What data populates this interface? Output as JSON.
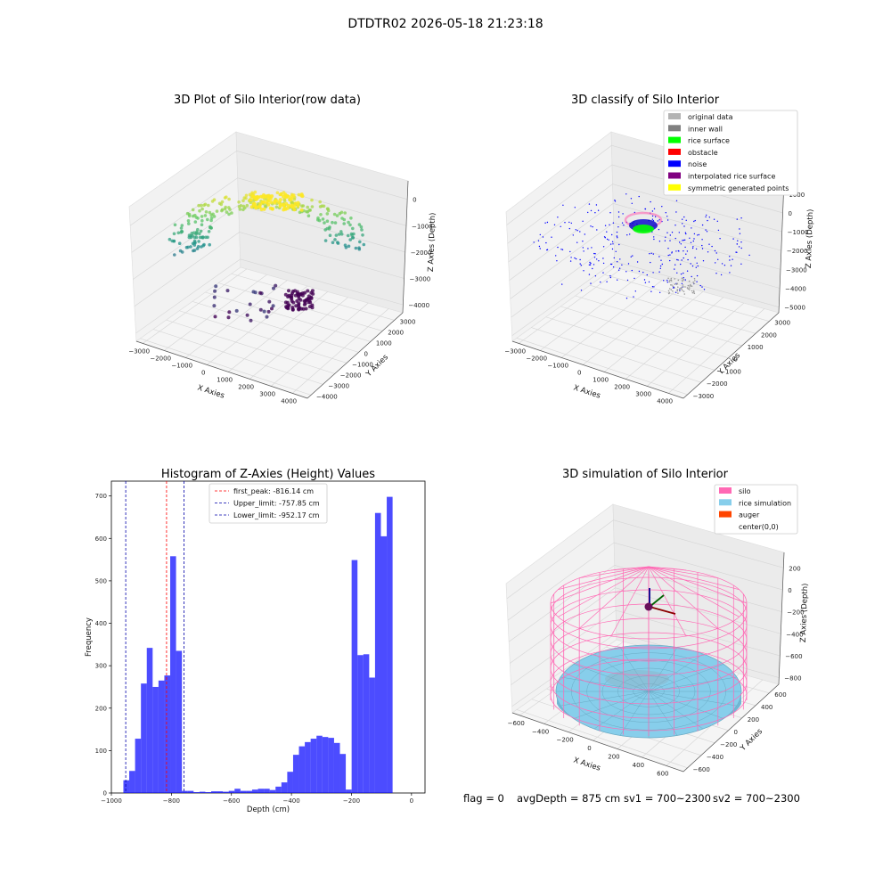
{
  "suptitle": "DTDTR02 2026-05-18 21:23:18",
  "panels": {
    "raw": {
      "title": "3D Plot of Silo Interior(row data)",
      "xlabel": "X Axies",
      "ylabel": "Y Axies",
      "zlabel": "Z Axies (Depth)",
      "xticks": [
        "−3000",
        "−2000",
        "−1000",
        "0",
        "1000",
        "2000",
        "3000",
        "4000"
      ],
      "yticks": [
        "−4000",
        "−3000",
        "−2000",
        "−1000",
        "0",
        "1000",
        "2000",
        "3000"
      ],
      "zticks": [
        "−4000",
        "−3000",
        "−2000",
        "−1000",
        "0"
      ]
    },
    "classify": {
      "title": "3D classify of Silo Interior",
      "xlabel": "X Axies",
      "ylabel": "Y Axies",
      "zlabel": "Z Axies (Depth)",
      "xticks": [
        "−3000",
        "−2000",
        "−1000",
        "0",
        "1000",
        "2000",
        "3000",
        "4000"
      ],
      "yticks": [
        "−3000",
        "−2000",
        "−1000",
        "0",
        "1000",
        "2000",
        "3000"
      ],
      "zticks": [
        "−5000",
        "−4000",
        "−3000",
        "−2000",
        "−1000",
        "0",
        "1000"
      ],
      "legend": [
        {
          "label": "original data",
          "color": "#b3b3b3"
        },
        {
          "label": "inner wall",
          "color": "#808080"
        },
        {
          "label": "rice surface",
          "color": "#00ff00"
        },
        {
          "label": "obstacle",
          "color": "#ff0000"
        },
        {
          "label": "noise",
          "color": "#0000ff"
        },
        {
          "label": "interpolated rice surface",
          "color": "#800080"
        },
        {
          "label": "symmetric generated points",
          "color": "#ffff00"
        }
      ]
    },
    "simulation": {
      "title": "3D simulation of Silo Interior",
      "xlabel": "X Axies",
      "ylabel": "Y Axies",
      "zlabel": "Z Axies (Depth)",
      "xticks": [
        "−600",
        "−400",
        "−200",
        "0",
        "200",
        "400",
        "600"
      ],
      "yticks": [
        "−600",
        "−400",
        "−200",
        "0",
        "200",
        "400",
        "600"
      ],
      "zticks": [
        "−800",
        "−600",
        "−400",
        "−200",
        "0",
        "200"
      ],
      "legend": [
        {
          "label": "silo",
          "color": "#ff69b4"
        },
        {
          "label": "rice simulation",
          "color": "#87ceeb"
        },
        {
          "label": "auger",
          "color": "#ff4500"
        },
        {
          "label": "center(0,0)",
          "color": "#ffffff"
        }
      ]
    }
  },
  "status_line": {
    "flag": "flag = 0",
    "avg": "avgDepth = 875 cm",
    "sv1": "sv1 = 700~2300",
    "sv2": "sv2 = 700~2300"
  },
  "chart_data": {
    "type": "bar",
    "title": "Histogram of Z-Axies (Height) Values",
    "xlabel": "Depth (cm)",
    "ylabel": "Frequency",
    "xlim": [
      -1000,
      45
    ],
    "ylim": [
      0,
      735
    ],
    "bar_color": "#0000ff",
    "bin_start": -960,
    "bin_width": 19.5,
    "values": [
      30,
      52,
      128,
      258,
      342,
      250,
      265,
      277,
      558,
      335,
      5,
      5,
      2,
      3,
      2,
      4,
      4,
      3,
      5,
      10,
      5,
      5,
      8,
      10,
      10,
      7,
      15,
      25,
      50,
      90,
      110,
      120,
      128,
      135,
      132,
      130,
      118,
      92,
      8,
      549,
      325,
      327,
      272,
      660,
      605,
      698
    ],
    "xticks": [
      -1000,
      -800,
      -600,
      -400,
      -200,
      0
    ],
    "yticks": [
      0,
      100,
      200,
      300,
      400,
      500,
      600,
      700
    ],
    "lines": [
      {
        "label": "first_peak: -816.14 cm",
        "x": -816.14,
        "color": "#ff0000"
      },
      {
        "label": "Upper_limit: -757.85 cm",
        "x": -757.85,
        "color": "#0000aa"
      },
      {
        "label": "Lower_limit: -952.17 cm",
        "x": -952.17,
        "color": "#0000aa"
      }
    ]
  }
}
